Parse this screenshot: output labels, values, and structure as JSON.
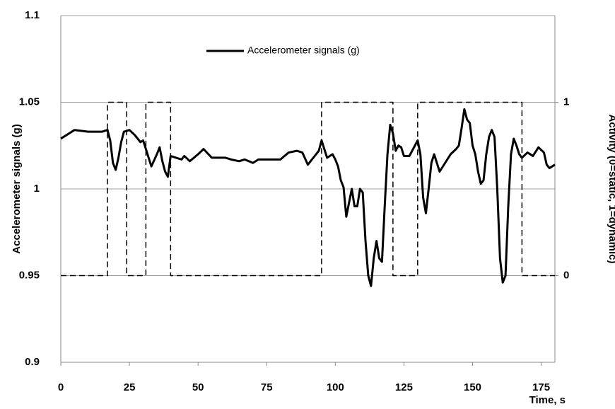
{
  "chart_data": {
    "type": "line",
    "xlabel": "Time, s",
    "ylabel": "Accelerometer signals (g)",
    "y2label": "Activity (0=static, 1=dynamic)",
    "xlim": [
      0,
      180
    ],
    "xticks": [
      0,
      25,
      50,
      75,
      100,
      125,
      150,
      175
    ],
    "ylim": [
      0.9,
      1.1
    ],
    "yticks": [
      0.9,
      0.95,
      1,
      1.05,
      1.1
    ],
    "y2lim": [
      -0.5,
      1.5
    ],
    "y2ticks": [
      0,
      1
    ],
    "grid": true,
    "series": [
      {
        "name": "Accelerometer signals (g)",
        "color": "#000000",
        "style": "solid",
        "x": [
          0,
          2,
          5,
          10,
          15,
          17,
          18,
          19,
          20,
          21,
          22,
          23,
          25,
          27,
          29,
          30,
          32,
          33,
          35,
          36,
          37,
          38,
          39,
          40,
          42,
          44,
          45,
          47,
          50,
          52,
          55,
          60,
          62,
          65,
          67,
          70,
          72,
          75,
          80,
          83,
          86,
          88,
          90,
          93,
          94,
          95,
          96,
          97,
          99,
          100,
          101,
          102,
          103,
          104,
          105,
          106,
          107,
          108,
          109,
          110,
          111,
          112,
          113,
          114,
          115,
          116,
          117,
          118,
          119,
          120,
          121,
          122,
          123,
          124,
          125,
          127,
          129,
          130,
          131,
          132,
          133,
          134,
          135,
          136,
          137,
          138,
          140,
          142,
          144,
          145,
          146,
          147,
          148,
          149,
          150,
          151,
          152,
          153,
          154,
          155,
          156,
          157,
          158,
          159,
          160,
          161,
          162,
          163,
          164,
          165,
          166,
          167,
          168,
          170,
          172,
          174,
          176,
          177,
          178,
          180
        ],
        "values": [
          1.029,
          1.031,
          1.034,
          1.033,
          1.033,
          1.034,
          1.028,
          1.015,
          1.011,
          1.018,
          1.027,
          1.033,
          1.034,
          1.031,
          1.027,
          1.028,
          1.018,
          1.013,
          1.02,
          1.024,
          1.016,
          1.01,
          1.007,
          1.019,
          1.018,
          1.017,
          1.019,
          1.016,
          1.02,
          1.023,
          1.018,
          1.018,
          1.017,
          1.016,
          1.017,
          1.015,
          1.017,
          1.017,
          1.017,
          1.021,
          1.022,
          1.021,
          1.014,
          1.02,
          1.022,
          1.028,
          1.023,
          1.018,
          1.02,
          1.017,
          1.013,
          1.005,
          1.001,
          0.984,
          0.992,
          1.0,
          0.99,
          0.99,
          1.0,
          0.998,
          0.97,
          0.95,
          0.944,
          0.96,
          0.97,
          0.96,
          0.958,
          0.99,
          1.02,
          1.037,
          1.032,
          1.022,
          1.025,
          1.024,
          1.019,
          1.019,
          1.025,
          1.028,
          1.02,
          0.995,
          0.986,
          1.0,
          1.015,
          1.02,
          1.015,
          1.01,
          1.015,
          1.02,
          1.023,
          1.025,
          1.035,
          1.046,
          1.04,
          1.038,
          1.025,
          1.02,
          1.01,
          1.003,
          1.005,
          1.02,
          1.03,
          1.034,
          1.03,
          1.0,
          0.96,
          0.946,
          0.95,
          0.99,
          1.02,
          1.029,
          1.025,
          1.02,
          1.018,
          1.021,
          1.019,
          1.024,
          1.021,
          1.014,
          1.012,
          1.014
        ]
      },
      {
        "color": "#000000",
        "style": "dashed",
        "axis": "y2",
        "x": [
          0,
          17,
          17,
          24,
          24,
          31,
          31,
          40,
          40,
          95,
          95,
          121,
          121,
          130,
          130,
          168,
          168,
          180
        ],
        "values": [
          0,
          0,
          1,
          1,
          0,
          0,
          1,
          1,
          0,
          0,
          1,
          1,
          0,
          0,
          1,
          1,
          0,
          0
        ]
      }
    ]
  }
}
